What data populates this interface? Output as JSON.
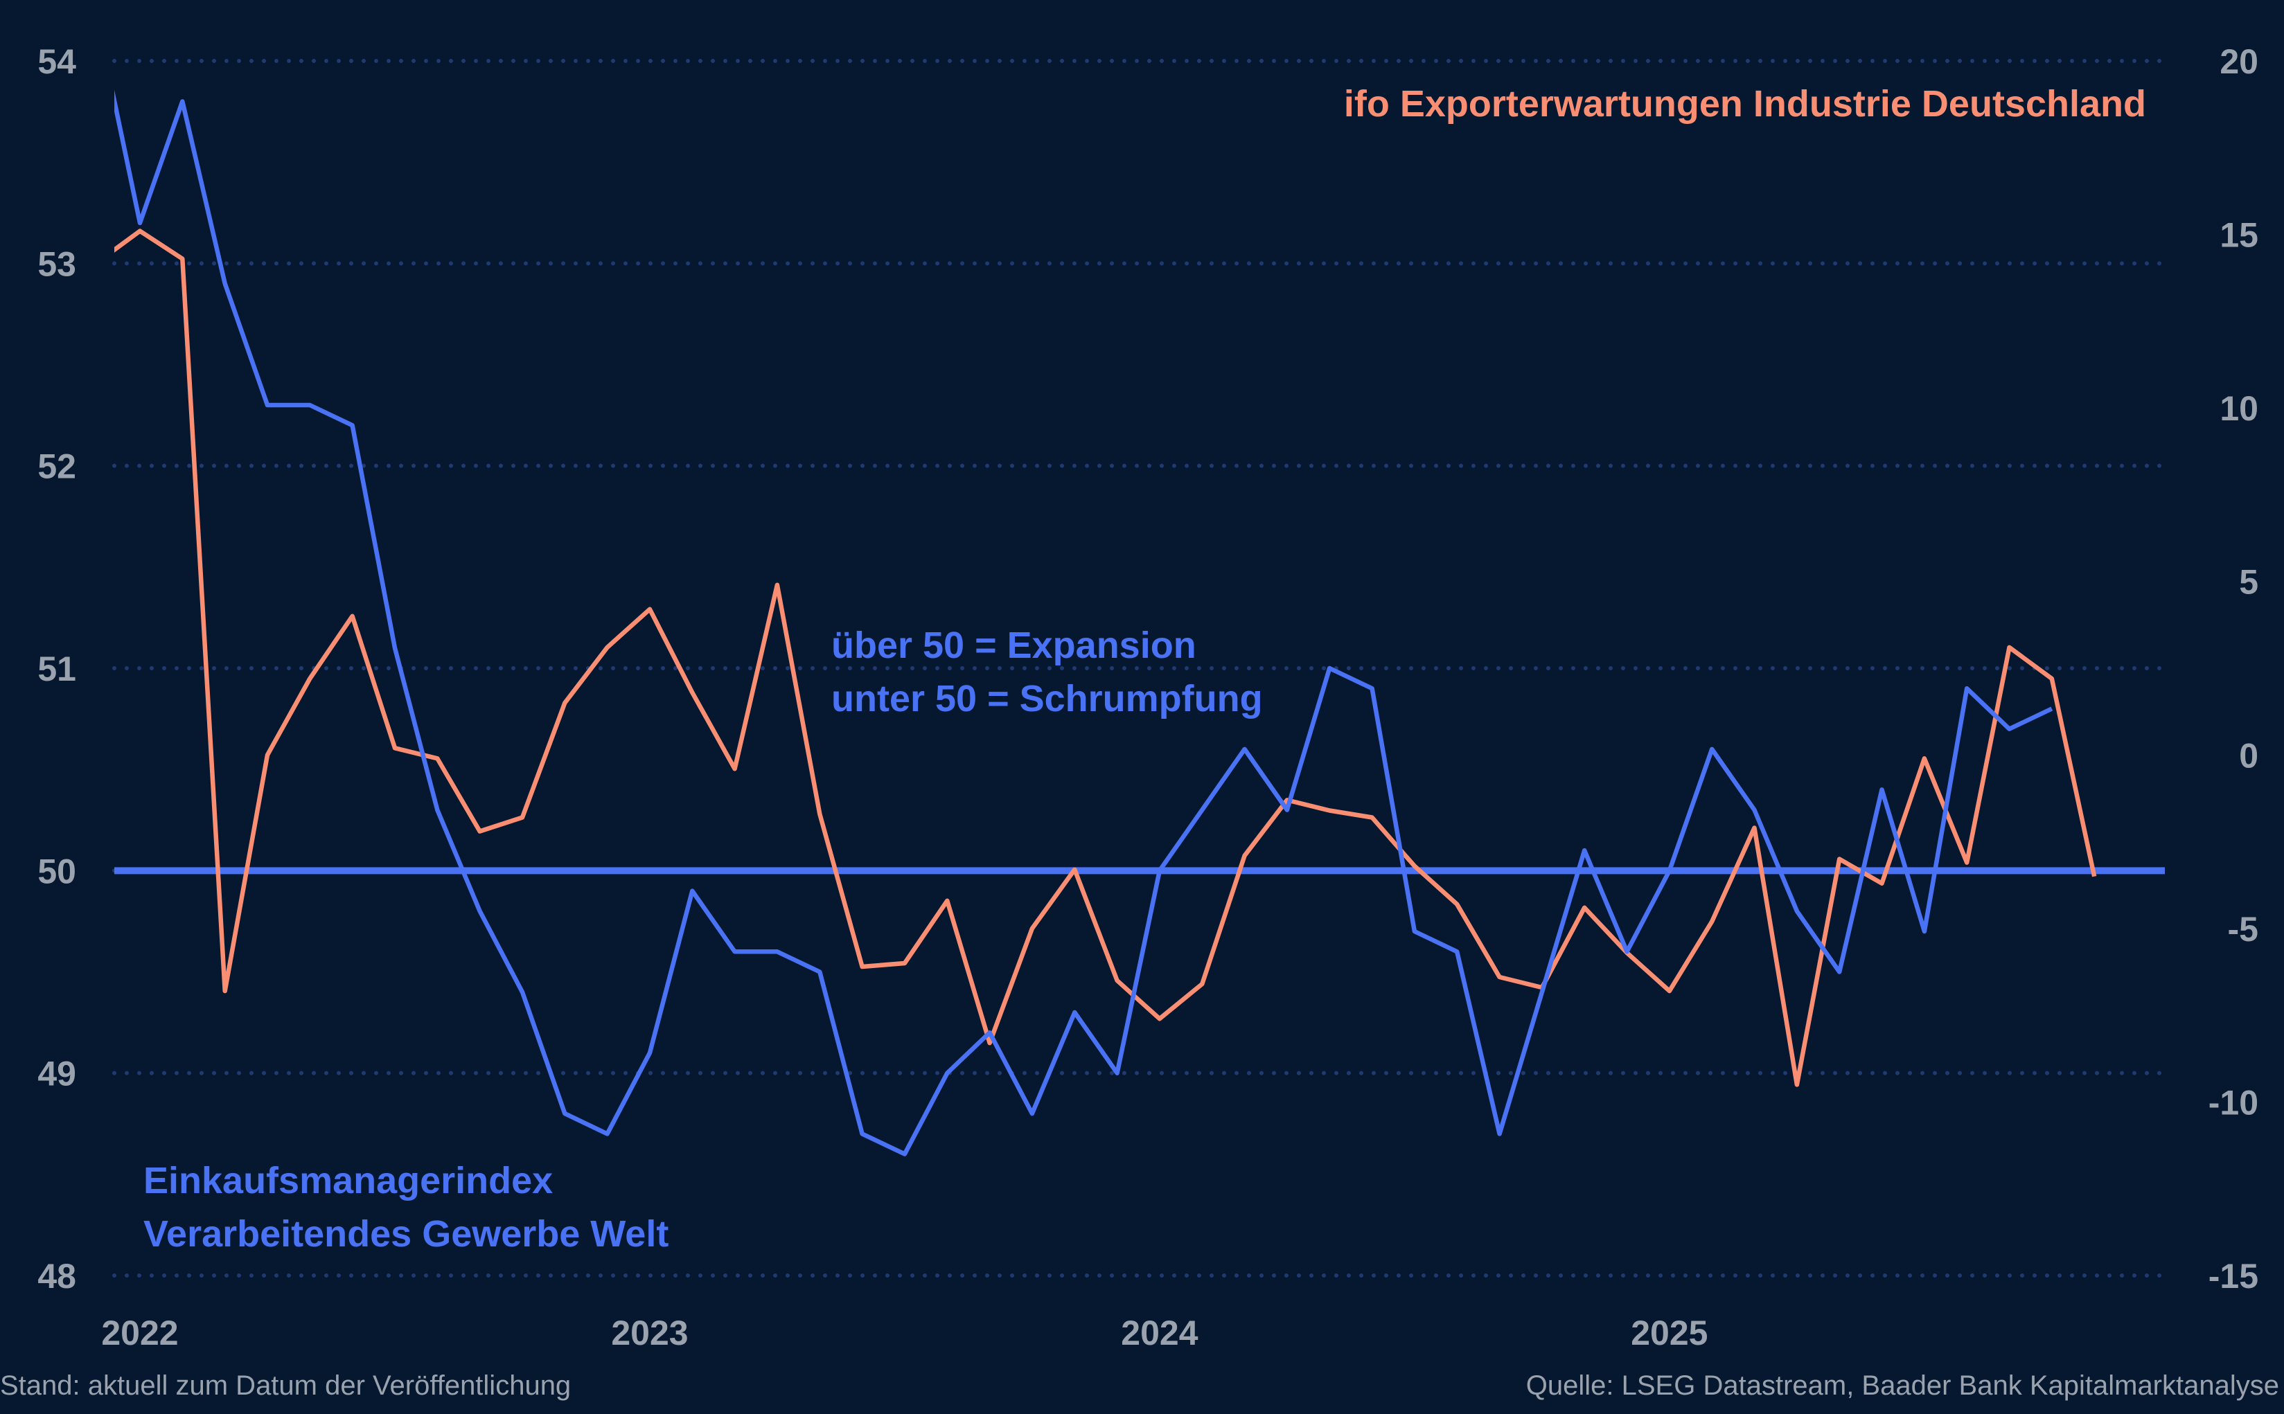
{
  "chart_data": {
    "type": "line",
    "title": "",
    "x": [
      "2021-12",
      "2022-01",
      "2022-02",
      "2022-03",
      "2022-04",
      "2022-05",
      "2022-06",
      "2022-07",
      "2022-08",
      "2022-09",
      "2022-10",
      "2022-11",
      "2022-12",
      "2023-01",
      "2023-02",
      "2023-03",
      "2023-04",
      "2023-05",
      "2023-06",
      "2023-07",
      "2023-08",
      "2023-09",
      "2023-10",
      "2023-11",
      "2023-12",
      "2024-01",
      "2024-02",
      "2024-03",
      "2024-04",
      "2024-05",
      "2024-06",
      "2024-07",
      "2024-08",
      "2024-09",
      "2024-10",
      "2024-11",
      "2024-12",
      "2025-01",
      "2025-02",
      "2025-03",
      "2025-04",
      "2025-05",
      "2025-06",
      "2025-07",
      "2025-08",
      "2025-09",
      "2025-10",
      "2025-11"
    ],
    "x_tick_labels": [
      "2022",
      "2023",
      "2024",
      "2025"
    ],
    "y_left": {
      "ylim": [
        48,
        54
      ],
      "ticks": [
        "54",
        "53",
        "52",
        "51",
        "50",
        "49",
        "48"
      ]
    },
    "y_right": {
      "ylim": [
        -15,
        20
      ],
      "ticks": [
        "20",
        "15",
        "10",
        "5",
        "0",
        "-5",
        "-10",
        "-15"
      ]
    },
    "grid": "horizontal dotted",
    "reference_line": {
      "axis": "left",
      "value": 50
    },
    "series": [
      {
        "name": "Einkaufsmanagerindex Verarbeitendes Gewerbe Welt",
        "axis": "left",
        "color": "#4a72f5",
        "values": [
          54.2,
          53.2,
          53.8,
          52.9,
          52.3,
          52.3,
          52.2,
          51.1,
          50.3,
          49.8,
          49.4,
          48.8,
          48.7,
          49.1,
          49.9,
          49.6,
          49.6,
          49.5,
          48.7,
          48.6,
          49.0,
          49.2,
          48.8,
          49.3,
          49.0,
          50.0,
          50.3,
          50.6,
          50.3,
          51.0,
          50.9,
          49.7,
          49.6,
          48.7,
          49.4,
          50.1,
          49.6,
          50.0,
          50.6,
          50.3,
          49.8,
          49.5,
          50.4,
          49.7,
          50.9,
          50.7,
          50.8,
          null
        ]
      },
      {
        "name": "ifo Exporterwartungen Industrie Deutschland",
        "axis": "right",
        "color": "#f98e72",
        "values": [
          14.2,
          15.1,
          14.3,
          -6.8,
          0.0,
          2.2,
          4.0,
          0.2,
          -0.1,
          -2.2,
          -1.8,
          1.5,
          3.1,
          4.2,
          1.8,
          -0.4,
          4.9,
          -1.7,
          -6.1,
          -6.0,
          -4.2,
          -8.3,
          -5.0,
          -3.3,
          -6.5,
          -7.6,
          -6.6,
          -2.9,
          -1.3,
          -1.6,
          -1.8,
          -3.2,
          -4.3,
          -6.4,
          -6.7,
          -4.4,
          -5.7,
          -6.8,
          -4.8,
          -2.1,
          -9.5,
          -3.0,
          -3.7,
          -0.1,
          -3.1,
          3.1,
          2.2,
          -3.5
        ]
      }
    ],
    "annotations": {
      "ifo_label": "ifo Exporterwartungen Industrie Deutschland",
      "expansion": "über 50 = Expansion",
      "contraction": "unter 50 = Schrumpfung",
      "pmi_label_line1": "Einkaufsmanagerindex",
      "pmi_label_line2": "Verarbeitendes Gewerbe Welt"
    },
    "colors": {
      "background": "#051830",
      "grid": "#1f3a70",
      "ticks": "#9aa3ad",
      "pmi": "#4a72f5",
      "ifo": "#f98e72"
    }
  },
  "footer": {
    "left": "Stand: aktuell zum Datum der Veröffentlichung",
    "right": "Quelle: LSEG Datastream, Baader Bank Kapitalmarktanalyse"
  }
}
